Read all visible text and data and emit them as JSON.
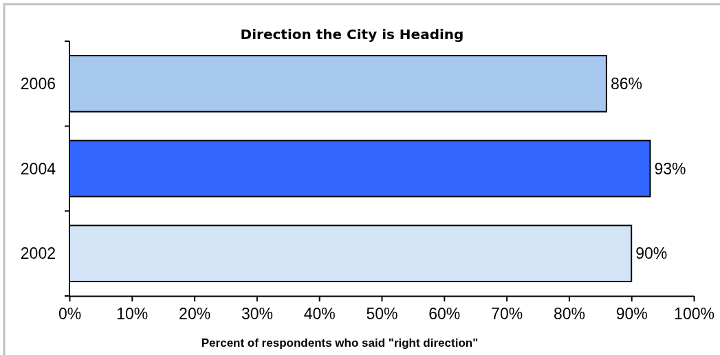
{
  "chart_data": {
    "type": "bar",
    "orientation": "horizontal",
    "title": "Direction the City is Heading",
    "xlabel": "Percent of respondents who said \"right direction\"",
    "categories": [
      "2006",
      "2004",
      "2002"
    ],
    "values": [
      86,
      93,
      90
    ],
    "colors": [
      "#a7c8ee",
      "#3366ff",
      "#d3e4f7"
    ],
    "value_labels": [
      "86%",
      "93%",
      "90%"
    ],
    "xlim": [
      0,
      100
    ],
    "xticks": [
      {
        "value": 0,
        "label": "0%"
      },
      {
        "value": 10,
        "label": "10%"
      },
      {
        "value": 20,
        "label": "20%"
      },
      {
        "value": 30,
        "label": "30%"
      },
      {
        "value": 40,
        "label": "40%"
      },
      {
        "value": 50,
        "label": "50%"
      },
      {
        "value": 60,
        "label": "60%"
      },
      {
        "value": 70,
        "label": "70%"
      },
      {
        "value": 80,
        "label": "80%"
      },
      {
        "value": 90,
        "label": "90%"
      },
      {
        "value": 100,
        "label": "100%"
      }
    ]
  }
}
